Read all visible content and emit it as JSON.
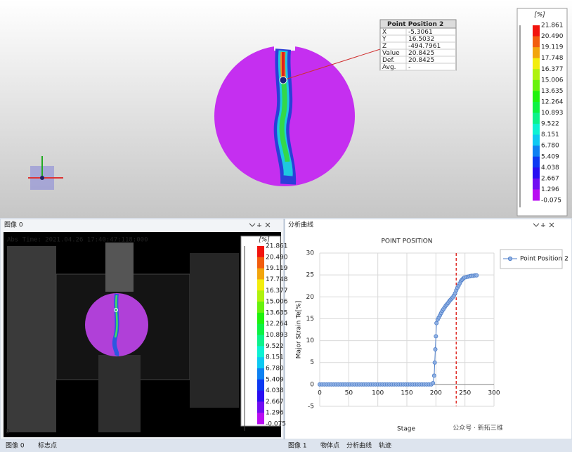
{
  "view3d": {
    "colorbar": {
      "unit": "[%]",
      "labels": [
        "21.861",
        "20.490",
        "19.119",
        "17.748",
        "16.377",
        "15.006",
        "13.635",
        "12.264",
        "10.893",
        "9.522",
        "8.151",
        "6.780",
        "5.409",
        "4.038",
        "2.667",
        "1.296",
        "-0.075"
      ]
    },
    "point_info": {
      "title": "Point Position 2",
      "rows": [
        [
          "X",
          "-5.3061"
        ],
        [
          "Y",
          "16.5032"
        ],
        [
          "Z",
          "-494.7961"
        ],
        [
          "Value",
          "20.8425"
        ],
        [
          "Def.",
          "20.8425"
        ],
        [
          "Avg.",
          "-"
        ]
      ]
    }
  },
  "image_panel": {
    "title": "图像 0",
    "timestamp": "Abs Time: 2021.04.26    17:40:47:118:000",
    "corner_label": "0"
  },
  "chart_panel": {
    "title": "分析曲线"
  },
  "chart_data": {
    "type": "line",
    "title": "POINT POSITION",
    "x_label": "Stage",
    "y_label": "Major Strain Te[%]",
    "x": [
      0,
      4,
      8,
      12,
      16,
      20,
      24,
      28,
      32,
      36,
      40,
      44,
      48,
      52,
      56,
      60,
      64,
      68,
      72,
      76,
      80,
      84,
      88,
      92,
      96,
      100,
      104,
      108,
      112,
      116,
      120,
      124,
      128,
      132,
      136,
      140,
      144,
      148,
      152,
      156,
      160,
      164,
      168,
      172,
      176,
      180,
      184,
      188,
      192,
      195,
      197,
      198,
      199,
      200,
      201,
      203,
      205,
      207,
      209,
      211,
      213,
      215,
      217,
      219,
      221,
      223,
      225,
      227,
      229,
      231,
      233,
      235,
      237,
      239,
      241,
      243,
      245,
      247,
      249,
      252,
      255,
      258,
      261,
      264,
      267,
      270
    ],
    "series": [
      {
        "name": "Point Position 2",
        "color": "#4f7fc9",
        "values": [
          0,
          0,
          0,
          0,
          0,
          0,
          0,
          0,
          0,
          0,
          0,
          0,
          0,
          0,
          0,
          0,
          0,
          0,
          0,
          0,
          0,
          0,
          0,
          0,
          0,
          0,
          0,
          0,
          0,
          0,
          0,
          0,
          0,
          0,
          0,
          0,
          0,
          0,
          0,
          0,
          0,
          0,
          0,
          0,
          0,
          0,
          0,
          0,
          0,
          0.3,
          2,
          5,
          8,
          11,
          14,
          14.8,
          15.3,
          15.8,
          16.3,
          16.8,
          17.2,
          17.6,
          18,
          18.3,
          18.6,
          19,
          19.3,
          19.6,
          19.9,
          20.3,
          20.8,
          21.5,
          22.1,
          22.6,
          23.1,
          23.6,
          23.9,
          24.2,
          24.4,
          24.5,
          24.6,
          24.7,
          24.8,
          24.8,
          24.9,
          24.9
        ]
      }
    ],
    "xlim": [
      0,
      300
    ],
    "xticks": [
      0,
      50,
      100,
      150,
      200,
      250,
      300
    ],
    "ylim": [
      -5,
      30
    ],
    "yticks": [
      -5,
      0,
      5,
      10,
      15,
      20,
      25,
      30
    ],
    "grid": true,
    "vline": {
      "x": 235,
      "color": "#e0302a"
    }
  },
  "tabs": {
    "left": [
      "图像 0",
      "标志点"
    ],
    "right": [
      "图像 1",
      "物体点",
      "分析曲线",
      "轨迹"
    ]
  },
  "watermark": "公众号 · 新拓三维"
}
